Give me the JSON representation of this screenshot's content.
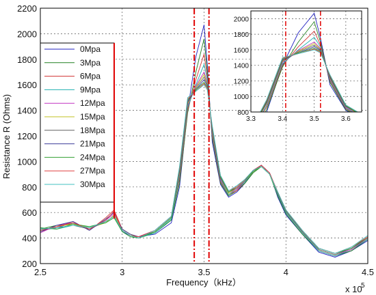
{
  "chart_data": [
    {
      "type": "line",
      "title": "",
      "xlabel": "Frequency（kHz）",
      "ylabel": "Resistance R (Ohms)",
      "x_exponent_label": "x 10",
      "x_exponent_power": "5",
      "xlim": [
        2.5,
        4.5
      ],
      "ylim": [
        200,
        2200
      ],
      "xticks": [
        "2.5",
        "3",
        "3.5",
        "4",
        "4.5"
      ],
      "yticks": [
        "200",
        "400",
        "600",
        "800",
        "1000",
        "1200",
        "1400",
        "1600",
        "1800",
        "2000",
        "2200"
      ],
      "grid": true,
      "legend_position": "left",
      "vertical_markers": [
        3.44,
        3.53
      ],
      "series": [
        {
          "name": "0Mpa",
          "color": "#2020c0",
          "x": [
            2.5,
            2.6,
            2.7,
            2.8,
            2.9,
            2.95,
            3.0,
            3.05,
            3.1,
            3.2,
            3.3,
            3.35,
            3.4,
            3.45,
            3.5,
            3.52,
            3.55,
            3.6,
            3.65,
            3.7,
            3.75,
            3.8,
            3.85,
            3.9,
            3.95,
            4.0,
            4.1,
            4.2,
            4.3,
            4.4,
            4.5
          ],
          "y": [
            460,
            480,
            520,
            470,
            540,
            610,
            450,
            420,
            410,
            430,
            520,
            800,
            1400,
            1820,
            2070,
            1750,
            1150,
            820,
            720,
            760,
            830,
            920,
            970,
            910,
            720,
            580,
            430,
            290,
            250,
            300,
            380
          ]
        },
        {
          "name": "3Mpa",
          "color": "#208020",
          "x": [
            2.5,
            2.6,
            2.7,
            2.8,
            2.9,
            2.95,
            3.0,
            3.05,
            3.1,
            3.2,
            3.3,
            3.35,
            3.4,
            3.45,
            3.5,
            3.52,
            3.55,
            3.6,
            3.65,
            3.7,
            3.75,
            3.8,
            3.85,
            3.9,
            3.95,
            4.0,
            4.1,
            4.2,
            4.3,
            4.4,
            4.5
          ],
          "y": [
            470,
            500,
            510,
            480,
            530,
            570,
            460,
            420,
            400,
            440,
            540,
            830,
            1380,
            1700,
            1960,
            1700,
            1180,
            830,
            730,
            770,
            830,
            910,
            960,
            900,
            730,
            590,
            430,
            300,
            260,
            300,
            390
          ]
        },
        {
          "name": "6Mpa",
          "color": "#d03030",
          "x": [
            2.5,
            2.6,
            2.7,
            2.8,
            2.9,
            2.95,
            3.0,
            3.05,
            3.1,
            3.2,
            3.3,
            3.35,
            3.4,
            3.45,
            3.5,
            3.52,
            3.55,
            3.6,
            3.65,
            3.7,
            3.75,
            3.8,
            3.85,
            3.9,
            3.95,
            4.0,
            4.1,
            4.2,
            4.3,
            4.4,
            4.5
          ],
          "y": [
            450,
            490,
            530,
            460,
            560,
            620,
            470,
            430,
            410,
            450,
            560,
            860,
            1400,
            1640,
            1840,
            1660,
            1200,
            840,
            740,
            770,
            840,
            920,
            970,
            910,
            740,
            600,
            440,
            300,
            260,
            310,
            390
          ]
        },
        {
          "name": "9Mpa",
          "color": "#20b0b0",
          "x": [
            2.5,
            2.6,
            2.7,
            2.8,
            2.9,
            2.95,
            3.0,
            3.05,
            3.1,
            3.2,
            3.3,
            3.35,
            3.4,
            3.45,
            3.5,
            3.52,
            3.55,
            3.6,
            3.65,
            3.7,
            3.75,
            3.8,
            3.85,
            3.9,
            3.95,
            4.0,
            4.1,
            4.2,
            4.3,
            4.4,
            4.5
          ],
          "y": [
            480,
            470,
            500,
            490,
            520,
            560,
            450,
            410,
            400,
            440,
            550,
            880,
            1420,
            1600,
            1760,
            1640,
            1210,
            850,
            740,
            780,
            840,
            920,
            960,
            900,
            740,
            600,
            440,
            300,
            260,
            310,
            390
          ]
        },
        {
          "name": "12Mpa",
          "color": "#c030c0",
          "x": [
            2.5,
            2.6,
            2.7,
            2.8,
            2.9,
            2.95,
            3.0,
            3.05,
            3.1,
            3.2,
            3.3,
            3.35,
            3.4,
            3.45,
            3.5,
            3.52,
            3.55,
            3.6,
            3.65,
            3.7,
            3.75,
            3.8,
            3.85,
            3.9,
            3.95,
            4.0,
            4.1,
            4.2,
            4.3,
            4.4,
            4.5
          ],
          "y": [
            440,
            500,
            520,
            470,
            540,
            590,
            460,
            420,
            410,
            460,
            570,
            900,
            1440,
            1590,
            1700,
            1620,
            1220,
            860,
            750,
            780,
            850,
            930,
            970,
            910,
            750,
            610,
            450,
            310,
            270,
            310,
            400
          ]
        },
        {
          "name": "15Mpa",
          "color": "#c0c020",
          "x": [
            2.5,
            2.6,
            2.7,
            2.8,
            2.9,
            2.95,
            3.0,
            3.05,
            3.1,
            3.2,
            3.3,
            3.35,
            3.4,
            3.45,
            3.5,
            3.52,
            3.55,
            3.6,
            3.65,
            3.7,
            3.75,
            3.8,
            3.85,
            3.9,
            3.95,
            4.0,
            4.1,
            4.2,
            4.3,
            4.4,
            4.5
          ],
          "y": [
            460,
            490,
            510,
            480,
            520,
            580,
            470,
            430,
            400,
            450,
            560,
            910,
            1450,
            1580,
            1680,
            1610,
            1230,
            870,
            750,
            790,
            850,
            920,
            960,
            900,
            750,
            610,
            450,
            310,
            270,
            320,
            400
          ]
        },
        {
          "name": "18Mpa",
          "color": "#606060",
          "x": [
            2.5,
            2.6,
            2.7,
            2.8,
            2.9,
            2.95,
            3.0,
            3.05,
            3.1,
            3.2,
            3.3,
            3.35,
            3.4,
            3.45,
            3.5,
            3.52,
            3.55,
            3.6,
            3.65,
            3.7,
            3.75,
            3.8,
            3.85,
            3.9,
            3.95,
            4.0,
            4.1,
            4.2,
            4.3,
            4.4,
            4.5
          ],
          "y": [
            470,
            480,
            500,
            470,
            530,
            570,
            460,
            420,
            400,
            450,
            560,
            920,
            1460,
            1570,
            1660,
            1600,
            1240,
            870,
            760,
            790,
            850,
            930,
            970,
            910,
            750,
            610,
            450,
            310,
            270,
            320,
            400
          ]
        },
        {
          "name": "21Mpa",
          "color": "#3a3a9a",
          "x": [
            2.5,
            2.6,
            2.7,
            2.8,
            2.9,
            2.95,
            3.0,
            3.05,
            3.1,
            3.2,
            3.3,
            3.35,
            3.4,
            3.45,
            3.5,
            3.52,
            3.55,
            3.6,
            3.65,
            3.7,
            3.75,
            3.8,
            3.85,
            3.9,
            3.95,
            4.0,
            4.1,
            4.2,
            4.3,
            4.4,
            4.5
          ],
          "y": [
            450,
            500,
            530,
            460,
            550,
            600,
            470,
            430,
            410,
            460,
            570,
            930,
            1470,
            1560,
            1640,
            1590,
            1250,
            880,
            760,
            800,
            860,
            930,
            970,
            910,
            760,
            620,
            460,
            320,
            280,
            320,
            410
          ]
        },
        {
          "name": "24Mpa",
          "color": "#30a030",
          "x": [
            2.5,
            2.6,
            2.7,
            2.8,
            2.9,
            2.95,
            3.0,
            3.05,
            3.1,
            3.2,
            3.3,
            3.35,
            3.4,
            3.45,
            3.5,
            3.52,
            3.55,
            3.6,
            3.65,
            3.7,
            3.75,
            3.8,
            3.85,
            3.9,
            3.95,
            4.0,
            4.1,
            4.2,
            4.3,
            4.4,
            4.5
          ],
          "y": [
            480,
            470,
            510,
            490,
            520,
            560,
            450,
            410,
            400,
            450,
            560,
            940,
            1480,
            1560,
            1620,
            1580,
            1260,
            880,
            760,
            800,
            860,
            920,
            960,
            900,
            760,
            620,
            460,
            320,
            280,
            320,
            410
          ]
        },
        {
          "name": "27Mpa",
          "color": "#e04040",
          "x": [
            2.5,
            2.6,
            2.7,
            2.8,
            2.9,
            2.95,
            3.0,
            3.05,
            3.1,
            3.2,
            3.3,
            3.35,
            3.4,
            3.45,
            3.5,
            3.52,
            3.55,
            3.6,
            3.65,
            3.7,
            3.75,
            3.8,
            3.85,
            3.9,
            3.95,
            4.0,
            4.1,
            4.2,
            4.3,
            4.4,
            4.5
          ],
          "y": [
            460,
            490,
            520,
            470,
            540,
            610,
            460,
            420,
            410,
            460,
            570,
            950,
            1490,
            1550,
            1610,
            1570,
            1270,
            890,
            770,
            800,
            860,
            930,
            970,
            910,
            760,
            620,
            460,
            320,
            280,
            330,
            410
          ]
        },
        {
          "name": "30Mpa",
          "color": "#40c0c0",
          "x": [
            2.5,
            2.6,
            2.7,
            2.8,
            2.9,
            2.95,
            3.0,
            3.05,
            3.1,
            3.2,
            3.3,
            3.35,
            3.4,
            3.45,
            3.5,
            3.52,
            3.55,
            3.6,
            3.65,
            3.7,
            3.75,
            3.8,
            3.85,
            3.9,
            3.95,
            4.0,
            4.1,
            4.2,
            4.3,
            4.4,
            4.5
          ],
          "y": [
            470,
            480,
            500,
            480,
            530,
            570,
            460,
            420,
            400,
            460,
            570,
            960,
            1500,
            1550,
            1600,
            1560,
            1280,
            890,
            770,
            810,
            860,
            930,
            960,
            900,
            760,
            620,
            460,
            320,
            280,
            330,
            420
          ]
        }
      ]
    },
    {
      "type": "line",
      "title": "",
      "inset_of": "main",
      "xlim": [
        3.3,
        3.65
      ],
      "ylim": [
        800,
        2100
      ],
      "xticks": [
        "3.3",
        "3.4",
        "3.5",
        "3.6"
      ],
      "yticks": [
        "800",
        "1000",
        "1200",
        "1400",
        "1600",
        "1800",
        "2000"
      ],
      "grid": true,
      "vertical_markers": [
        3.41,
        3.52
      ],
      "series_ref": "same as main chart, zoomed to peak region"
    }
  ]
}
